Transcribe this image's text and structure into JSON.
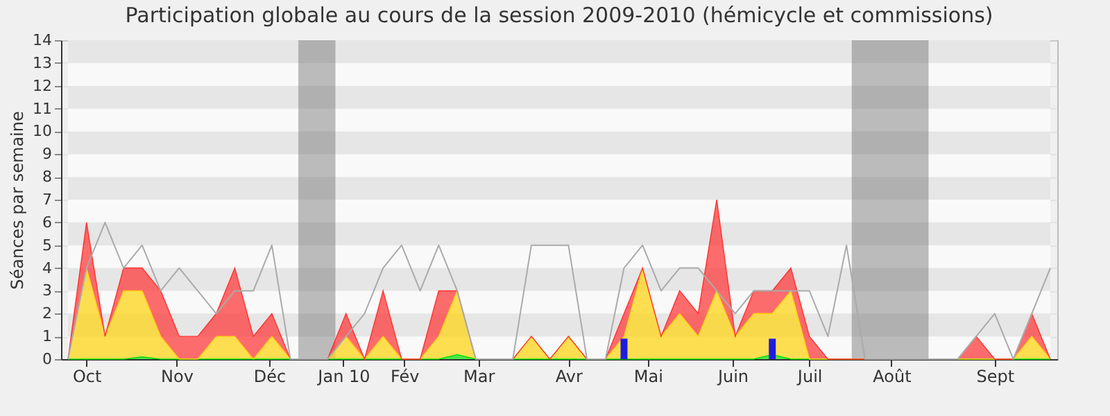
{
  "chart_data": {
    "type": "area",
    "title": "Participation globale au cours de la session 2009-2010 (hémicycle et commissions)",
    "ylabel": "Séances par semaine",
    "x": [
      "2009-09-28",
      "2009-10-05",
      "2009-10-12",
      "2009-10-19",
      "2009-10-26",
      "2009-11-02",
      "2009-11-09",
      "2009-11-16",
      "2009-11-23",
      "2009-11-30",
      "2009-12-07",
      "2009-12-14",
      "2009-12-21",
      "2009-12-28",
      "2010-01-04",
      "2010-01-11",
      "2010-01-18",
      "2010-01-25",
      "2010-02-01",
      "2010-02-08",
      "2010-02-15",
      "2010-02-22",
      "2010-03-01",
      "2010-03-08",
      "2010-03-15",
      "2010-03-22",
      "2010-03-29",
      "2010-04-05",
      "2010-04-12",
      "2010-04-19",
      "2010-04-26",
      "2010-05-03",
      "2010-05-10",
      "2010-05-17",
      "2010-05-24",
      "2010-05-31",
      "2010-06-07",
      "2010-06-14",
      "2010-06-21",
      "2010-06-28",
      "2010-07-05",
      "2010-07-12",
      "2010-07-19",
      "2010-07-26",
      "2010-08-02",
      "2010-08-09",
      "2010-08-16",
      "2010-08-23",
      "2010-08-30",
      "2010-09-06",
      "2010-09-13",
      "2010-09-20",
      "2010-09-27",
      "2010-10-04"
    ],
    "xlim": [
      "2009-09-28",
      "2010-10-04"
    ],
    "xticks": [
      {
        "value": "2009-10-05",
        "label": "Oct"
      },
      {
        "value": "2009-11-08",
        "label": "Nov"
      },
      {
        "value": "2009-12-13",
        "label": "Déc"
      },
      {
        "value": "2010-01-10",
        "label": "Jan 10"
      },
      {
        "value": "2010-02-02",
        "label": "Fév"
      },
      {
        "value": "2010-03-02",
        "label": "Mar"
      },
      {
        "value": "2010-04-05",
        "label": "Avr"
      },
      {
        "value": "2010-05-05",
        "label": "Mai"
      },
      {
        "value": "2010-06-06",
        "label": "Juin"
      },
      {
        "value": "2010-07-05",
        "label": "Juil"
      },
      {
        "value": "2010-08-05",
        "label": "Août"
      },
      {
        "value": "2010-09-13",
        "label": "Sept"
      }
    ],
    "ylim": [
      0,
      14
    ],
    "yticks": [
      0,
      1,
      2,
      3,
      4,
      5,
      6,
      7,
      8,
      9,
      10,
      11,
      12,
      13,
      14
    ],
    "grid": true,
    "stacked": true,
    "bands": [
      {
        "axis": "x",
        "from": "2009-12-24",
        "to": "2010-01-07",
        "color": "#666666"
      },
      {
        "axis": "x",
        "from": "2010-07-21",
        "to": "2010-08-19",
        "color": "#666666"
      }
    ],
    "series": [
      {
        "color": "#00dd00",
        "values": [
          0,
          0,
          0,
          0,
          0.1,
          0,
          0,
          0,
          0,
          0,
          0,
          0,
          0,
          0,
          0,
          0,
          0,
          0,
          0,
          0,
          0,
          0.2,
          0,
          0,
          0,
          0,
          0,
          0,
          0,
          0,
          0,
          0,
          0,
          0,
          0,
          0,
          0,
          0,
          0.2,
          0,
          0,
          0,
          0,
          0,
          0,
          0,
          0,
          0,
          0,
          0,
          0,
          0,
          0,
          0
        ]
      },
      {
        "color": "#ffd30a",
        "values": [
          0,
          4,
          1,
          3,
          2.9,
          1,
          0,
          0,
          1,
          1,
          0,
          1,
          0,
          0,
          0,
          1,
          0,
          1,
          0,
          0,
          1,
          2.8,
          0,
          0,
          0,
          1,
          0,
          1,
          0,
          0,
          1,
          4,
          1,
          2,
          1,
          3,
          1,
          2,
          1.8,
          3,
          0,
          0,
          0,
          0,
          0,
          0,
          0,
          0,
          0,
          0,
          0,
          0,
          1,
          0
        ]
      },
      {
        "color": "#ff3030",
        "values": [
          0,
          2,
          0,
          1,
          1,
          2,
          1,
          1,
          1,
          3,
          1,
          1,
          0,
          0,
          0,
          1,
          0,
          2,
          0,
          0,
          2,
          0,
          0,
          0,
          0,
          0,
          0,
          0,
          0,
          0,
          1,
          0,
          0,
          1,
          1,
          4,
          0,
          1,
          1,
          1,
          1,
          0,
          0,
          0,
          0,
          0,
          0,
          0,
          0,
          1,
          0,
          0,
          1,
          0
        ]
      },
      {
        "type": "bar",
        "color": "#1d1ddd",
        "values": [
          null,
          null,
          null,
          null,
          null,
          null,
          null,
          null,
          null,
          null,
          null,
          null,
          null,
          null,
          null,
          null,
          null,
          null,
          null,
          null,
          null,
          null,
          null,
          null,
          null,
          null,
          null,
          null,
          null,
          null,
          0.9,
          null,
          null,
          null,
          null,
          null,
          null,
          null,
          0.9,
          null,
          null,
          null,
          null,
          null,
          null,
          null,
          null,
          null,
          null,
          null,
          null,
          null,
          null,
          null
        ]
      },
      {
        "type": "line",
        "color": "#aaaaaa",
        "values": [
          0,
          4,
          6,
          4,
          5,
          3,
          4,
          3,
          2,
          3,
          3,
          5,
          0,
          0,
          0,
          1,
          2,
          4,
          5,
          3,
          5,
          3,
          0,
          0,
          0,
          5,
          5,
          5,
          0,
          0,
          4,
          5,
          3,
          4,
          4,
          3,
          2,
          3,
          3,
          3,
          3,
          1,
          5,
          0,
          0,
          0,
          0,
          0,
          0,
          1,
          2,
          0,
          2,
          4
        ]
      }
    ]
  }
}
